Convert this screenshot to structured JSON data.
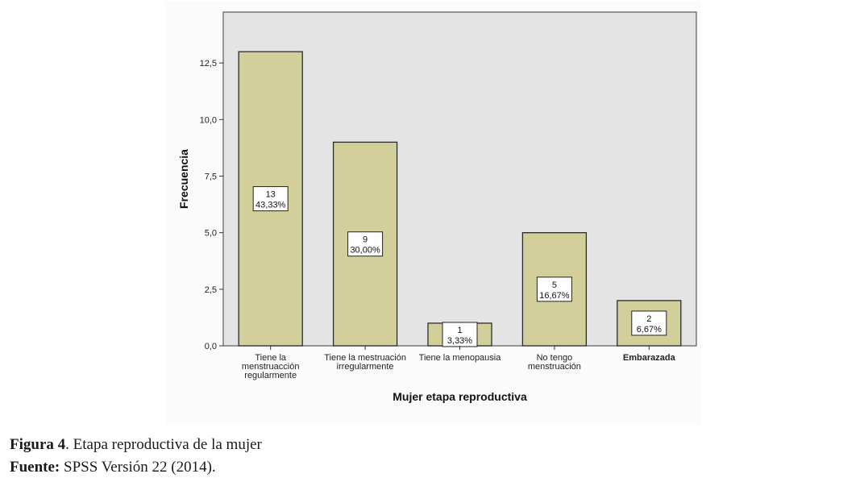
{
  "chart_data": {
    "type": "bar",
    "categories": [
      "Tiene la menstruacción regularmente",
      "Tiene la mestruación irregularmente",
      "Tiene la menopausia",
      "No tengo menstruación",
      "Embarazada"
    ],
    "category_lines": [
      [
        "Tiene la",
        "menstruacción",
        "regularmente"
      ],
      [
        "Tiene la mestruación",
        "irregularmente"
      ],
      [
        "Tiene la menopausia"
      ],
      [
        "No tengo",
        "menstruación"
      ],
      [
        "Embarazada"
      ]
    ],
    "values": [
      13,
      9,
      1,
      5,
      2
    ],
    "percent_labels": [
      "43,33%",
      "30,00%",
      "3,33%",
      "16,67%",
      "6,67%"
    ],
    "xlabel": "Mujer etapa reproductiva",
    "ylabel": "Frecuencia",
    "ylim": [
      0,
      14.75
    ],
    "yticks": [
      0,
      2.5,
      5,
      7.5,
      10,
      12.5
    ],
    "ytick_labels": [
      "0,0",
      "2,5",
      "5,0",
      "7,5",
      "10,0",
      "12,5"
    ],
    "grid": false,
    "colors": {
      "bar_fill": "#d3cf9b",
      "bar_stroke": "#2b2b2b",
      "plot_bg": "#e4e4e4",
      "frame": "#5a5a5a"
    }
  },
  "caption": {
    "figure_label": "Figura 4",
    "figure_text": ". Etapa reproductiva de la mujer",
    "source_label": "Fuente:",
    "source_text": " SPSS Versión 22 (2014)."
  }
}
